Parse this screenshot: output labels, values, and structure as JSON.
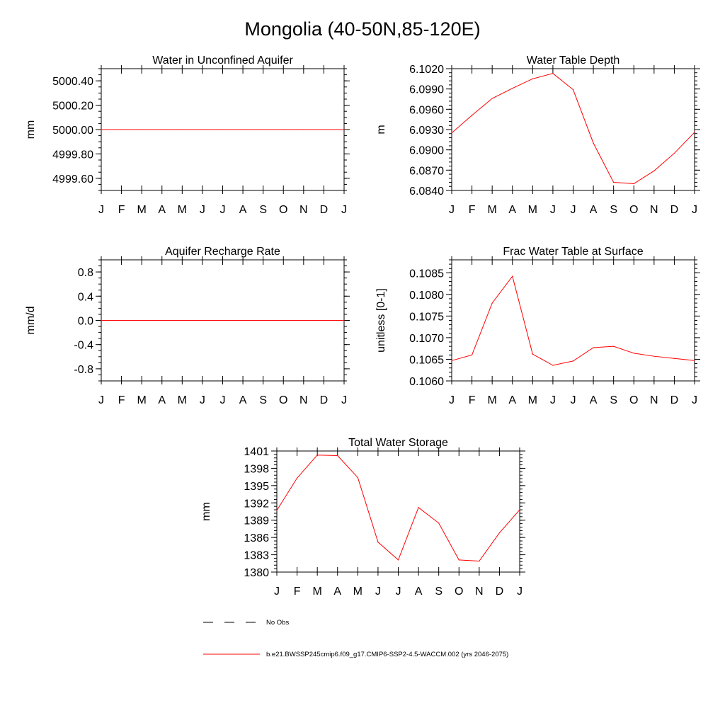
{
  "title": "Mongolia (40-50N,85-120E)",
  "colors": {
    "series": "#ff0000",
    "axis": "#000000",
    "obs": "#000000"
  },
  "legend": {
    "obs_label": "No Obs",
    "model_label": "b.e21.BWSSP245cmip6.f09_g17.CMIP6-SSP2-4.5-WACCM.002 (yrs 2046-2075)"
  },
  "chart_data": [
    {
      "id": "aquifer",
      "type": "line",
      "title": "Water in Unconfined Aquifer",
      "ylabel": "mm",
      "categories": [
        "J",
        "F",
        "M",
        "A",
        "M",
        "J",
        "J",
        "A",
        "S",
        "O",
        "N",
        "D",
        "J"
      ],
      "ylim": [
        4999.5,
        5000.5
      ],
      "yticks": [
        4999.6,
        4999.8,
        5000.0,
        5000.2,
        5000.4
      ],
      "ytick_labels": [
        "4999.60",
        "4999.80",
        "5000.00",
        "5000.20",
        "5000.40"
      ],
      "minor_step": 0.05,
      "series": [
        {
          "name": "model",
          "values": [
            5000,
            5000,
            5000,
            5000,
            5000,
            5000,
            5000,
            5000,
            5000,
            5000,
            5000,
            5000,
            5000
          ]
        }
      ]
    },
    {
      "id": "wtd",
      "type": "line",
      "title": "Water Table Depth",
      "ylabel": "m",
      "categories": [
        "J",
        "F",
        "M",
        "A",
        "M",
        "J",
        "J",
        "A",
        "S",
        "O",
        "N",
        "D",
        "J"
      ],
      "ylim": [
        6.084,
        6.102
      ],
      "yticks": [
        6.084,
        6.087,
        6.09,
        6.093,
        6.096,
        6.099,
        6.102
      ],
      "ytick_labels": [
        "6.0840",
        "6.0870",
        "6.0900",
        "6.0930",
        "6.0960",
        "6.0990",
        "6.1020"
      ],
      "minor_step": 0.0006,
      "series": [
        {
          "name": "model",
          "values": [
            6.0925,
            6.0951,
            6.0976,
            6.0991,
            6.1005,
            6.1013,
            6.0989,
            6.091,
            6.0852,
            6.085,
            6.0869,
            6.0895,
            6.0926
          ]
        }
      ]
    },
    {
      "id": "recharge",
      "type": "line",
      "title": "Aquifer Recharge Rate",
      "ylabel": "mm/d",
      "categories": [
        "J",
        "F",
        "M",
        "A",
        "M",
        "J",
        "J",
        "A",
        "S",
        "O",
        "N",
        "D",
        "J"
      ],
      "ylim": [
        -1.0,
        1.0
      ],
      "yticks": [
        -0.8,
        -0.4,
        0.0,
        0.4,
        0.8
      ],
      "ytick_labels": [
        "-0.8",
        "-0.4",
        "0.0",
        "0.4",
        "0.8"
      ],
      "minor_step": 0.1,
      "series": [
        {
          "name": "model",
          "values": [
            0,
            0,
            0,
            0,
            0,
            0,
            0,
            0,
            0,
            0,
            0,
            0,
            0
          ]
        }
      ]
    },
    {
      "id": "frac",
      "type": "line",
      "title": "Frac Water Table at Surface",
      "ylabel": "unitless [0-1]",
      "categories": [
        "J",
        "F",
        "M",
        "A",
        "M",
        "J",
        "J",
        "A",
        "S",
        "O",
        "N",
        "D",
        "J"
      ],
      "ylim": [
        0.106,
        0.1088
      ],
      "yticks": [
        0.106,
        0.1065,
        0.107,
        0.1075,
        0.108,
        0.1085
      ],
      "ytick_labels": [
        "0.1060",
        "0.1065",
        "0.1070",
        "0.1075",
        "0.1080",
        "0.1085"
      ],
      "minor_step": 0.0001,
      "series": [
        {
          "name": "model",
          "values": [
            0.10647,
            0.1066,
            0.1078,
            0.10842,
            0.10662,
            0.10636,
            0.10646,
            0.10677,
            0.1068,
            0.10664,
            0.10657,
            0.10652,
            0.10647
          ]
        }
      ]
    },
    {
      "id": "tws",
      "type": "line",
      "title": "Total Water Storage",
      "ylabel": "mm",
      "categories": [
        "J",
        "F",
        "M",
        "A",
        "M",
        "J",
        "J",
        "A",
        "S",
        "O",
        "N",
        "D",
        "J"
      ],
      "ylim": [
        1380,
        1401
      ],
      "yticks": [
        1380,
        1383,
        1386,
        1389,
        1392,
        1395,
        1398,
        1401
      ],
      "ytick_labels": [
        "1380",
        "1383",
        "1386",
        "1389",
        "1392",
        "1395",
        "1398",
        "1401"
      ],
      "minor_step": 0.6,
      "series": [
        {
          "name": "model",
          "values": [
            1390.7,
            1396.3,
            1400.3,
            1400.2,
            1396.4,
            1385.2,
            1382.1,
            1391.2,
            1388.5,
            1382.1,
            1381.9,
            1386.8,
            1390.8
          ]
        }
      ]
    }
  ]
}
